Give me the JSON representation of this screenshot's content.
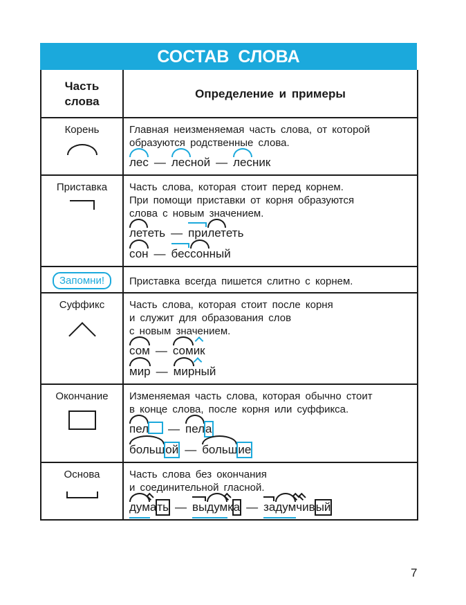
{
  "title": "СОСТАВ СЛОВА",
  "header": {
    "col1": "Часть\nслова",
    "col2": "Определение и примеры"
  },
  "rows": [
    {
      "name": "Корень",
      "symbol": "root",
      "definition": [
        "Главная неизменяемая часть слова, от которой",
        "образуются родственные слова."
      ],
      "examples": [
        [
          [
            {
              "t": "лес",
              "m": "root"
            }
          ],
          [
            {
              "t": "лес",
              "m": "root"
            },
            {
              "t": "ной"
            }
          ],
          [
            {
              "t": "лес",
              "m": "root"
            },
            {
              "t": "ник"
            }
          ]
        ]
      ]
    },
    {
      "name": "Приставка",
      "symbol": "prefix",
      "definition": [
        "Часть слова, которая стоит перед корнем.",
        "При помощи приставки от корня образуются",
        "слова с новым значением."
      ],
      "examples": [
        [
          [
            {
              "t": "лет",
              "m": "root"
            },
            {
              "t": "еть"
            }
          ],
          [
            {
              "t": "при",
              "m": "prefix"
            },
            {
              "t": "лет",
              "m": "root"
            },
            {
              "t": "еть"
            }
          ]
        ],
        [
          [
            {
              "t": "сон",
              "m": "root"
            }
          ],
          [
            {
              "t": "бес",
              "m": "prefix"
            },
            {
              "t": "сон",
              "m": "root"
            },
            {
              "t": "ный"
            }
          ]
        ]
      ]
    },
    {
      "name": "Суффикс",
      "symbol": "suffix",
      "definition": [
        "Часть слова, которая стоит после корня",
        "и служит для образования слов",
        "с новым значением."
      ],
      "examples": [
        [
          [
            {
              "t": "сом",
              "m": "root"
            }
          ],
          [
            {
              "t": "сом",
              "m": "root"
            },
            {
              "t": "ик",
              "m": "suffix"
            }
          ]
        ],
        [
          [
            {
              "t": "мир",
              "m": "root"
            }
          ],
          [
            {
              "t": "мир",
              "m": "root"
            },
            {
              "t": "н",
              "m": "suffix"
            },
            {
              "t": "ый"
            }
          ]
        ]
      ]
    },
    {
      "name": "Окончание",
      "symbol": "ending",
      "definition": [
        "Изменяемая часть слова, которая обычно стоит",
        "в конце слова, после корня или суффикса."
      ],
      "examples": [
        [
          [
            {
              "t": "пел",
              "m": "root"
            },
            {
              "t": "",
              "m": "ending"
            }
          ],
          [
            {
              "t": "пел",
              "m": "root"
            },
            {
              "t": "а",
              "m": "ending"
            }
          ]
        ],
        [
          [
            {
              "t": "больш",
              "m": "root"
            },
            {
              "t": "ой",
              "m": "ending"
            }
          ],
          [
            {
              "t": "больш",
              "m": "root"
            },
            {
              "t": "ие",
              "m": "ending"
            }
          ]
        ]
      ]
    },
    {
      "name": "Основа",
      "symbol": "stem",
      "definition": [
        "Часть слова без окончания",
        "и соединительной гласной."
      ],
      "examples": [
        [
          [
            {
              "t": "дум",
              "m": "root",
              "stem": true
            },
            {
              "t": "а",
              "m": "suffix",
              "stem": true
            },
            {
              "t": "ть",
              "m": "ending"
            }
          ],
          [
            {
              "t": "вы",
              "m": "prefix",
              "stem": true
            },
            {
              "t": "дум",
              "m": "root",
              "stem": true
            },
            {
              "t": "к",
              "m": "suffix",
              "stem": true
            },
            {
              "t": "а",
              "m": "ending"
            }
          ],
          [
            {
              "t": "за",
              "m": "prefix",
              "stem": true
            },
            {
              "t": "дум",
              "m": "root",
              "stem": true
            },
            {
              "t": "ч",
              "m": "suffix",
              "stem": true
            },
            {
              "t": "ив",
              "m": "suffix",
              "stem": true
            },
            {
              "t": "ый",
              "m": "ending"
            }
          ]
        ]
      ]
    }
  ],
  "remember": {
    "badge": "Запомни!",
    "text": "Приставка всегда пишется слитно с корнем."
  },
  "dash": "—",
  "page_number": "7",
  "accent_color": "#1ba9dc"
}
